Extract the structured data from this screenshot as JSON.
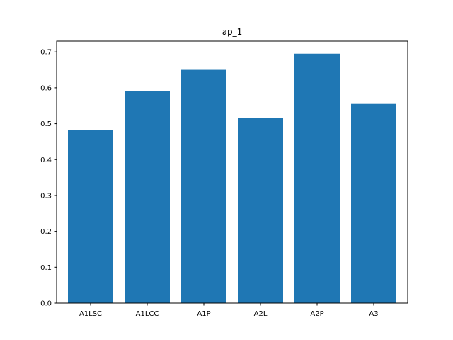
{
  "chart_data": {
    "type": "bar",
    "title": "ap_1",
    "xlabel": "",
    "ylabel": "",
    "categories": [
      "A1LSC",
      "A1LCC",
      "A1P",
      "A2L",
      "A2P",
      "A3"
    ],
    "values": [
      0.482,
      0.59,
      0.65,
      0.516,
      0.695,
      0.555
    ],
    "ylim": [
      0,
      0.73
    ],
    "yticks": [
      0.0,
      0.1,
      0.2,
      0.3,
      0.4,
      0.5,
      0.6,
      0.7
    ],
    "ytick_labels": [
      "0.0",
      "0.1",
      "0.2",
      "0.3",
      "0.4",
      "0.5",
      "0.6",
      "0.7"
    ],
    "grid": false,
    "legend": "none",
    "colors": {
      "bar": "#1f77b4",
      "axis": "#000000"
    }
  }
}
